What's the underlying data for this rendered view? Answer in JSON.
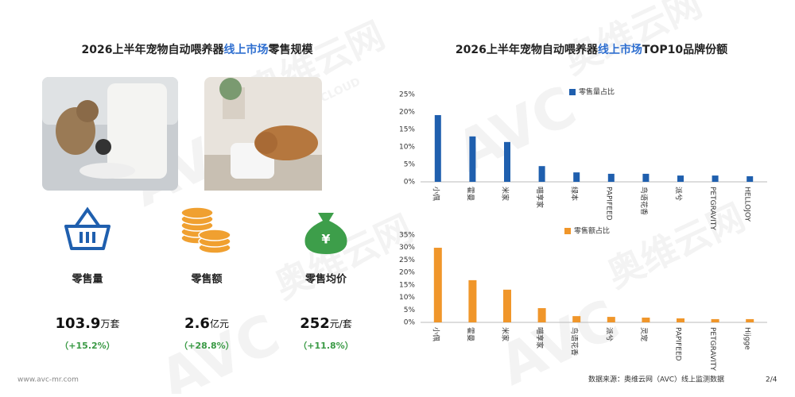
{
  "left_title": {
    "before": "2026上半年宠物自动喂养器",
    "highlight": "线上市场",
    "after": "零售规模"
  },
  "right_title": {
    "before": "2026上半年宠物自动喂养器",
    "highlight": "线上市场",
    "after": "TOP10品牌份额"
  },
  "stats": [
    {
      "label": "零售量",
      "number": "103.9",
      "unit": "万套",
      "growth": "（+15.2%）"
    },
    {
      "label": "零售额",
      "number": "2.6",
      "unit": "亿元",
      "growth": "（+28.8%）"
    },
    {
      "label": "零售均价",
      "number": "252",
      "unit": "元/套",
      "growth": "（+11.8%）"
    }
  ],
  "watermark": {
    "logo": "AVC",
    "name": "奥维云网",
    "sub": "ALL VIEW CLOUD"
  },
  "footer": {
    "site": "www.avc-mr.com",
    "source": "数据来源：奥维云网（AVC）线上监测数据",
    "page": "2/4"
  },
  "chart_data": [
    {
      "type": "bar",
      "categories": [
        "小佩",
        "霍曼",
        "米家",
        "喵享家",
        "绿本",
        "PAPIFEED",
        "鸟语花香",
        "派兮",
        "PETGRAVITY",
        "HELLOJOY"
      ],
      "series": [
        {
          "name": "零售量占比",
          "color": "#1f5fae",
          "values": [
            19.1,
            13,
            11.4,
            4.5,
            2.7,
            2.3,
            2.3,
            1.8,
            1.8,
            1.6
          ]
        }
      ],
      "ylim": [
        0,
        25
      ],
      "yticks": [
        {
          "value": 0,
          "label": "0%"
        },
        {
          "value": 5,
          "label": "5%"
        },
        {
          "value": 10,
          "label": "10%"
        },
        {
          "value": 15,
          "label": "15%"
        },
        {
          "value": 20,
          "label": "20%"
        },
        {
          "value": 25,
          "label": "25%"
        }
      ]
    },
    {
      "type": "bar",
      "categories": [
        "小佩",
        "霍曼",
        "米家",
        "喵享家",
        "鸟语花香",
        "派兮",
        "灵宠",
        "PAPIFEED",
        "PETGRAVITY",
        "Hijgge"
      ],
      "series": [
        {
          "name": "零售额占比",
          "color": "#f0962a",
          "values": [
            29.9,
            16.9,
            13.1,
            5.7,
            2.5,
            2.2,
            1.9,
            1.6,
            1.3,
            1.3
          ]
        }
      ],
      "ylim": [
        0,
        35
      ],
      "yticks": [
        {
          "value": 0,
          "label": "0%"
        },
        {
          "value": 5,
          "label": "5%"
        },
        {
          "value": 10,
          "label": "10%"
        },
        {
          "value": 15,
          "label": "15%"
        },
        {
          "value": 20,
          "label": "20%"
        },
        {
          "value": 25,
          "label": "25%"
        },
        {
          "value": 30,
          "label": "30%"
        },
        {
          "value": 35,
          "label": "35%"
        }
      ]
    }
  ]
}
